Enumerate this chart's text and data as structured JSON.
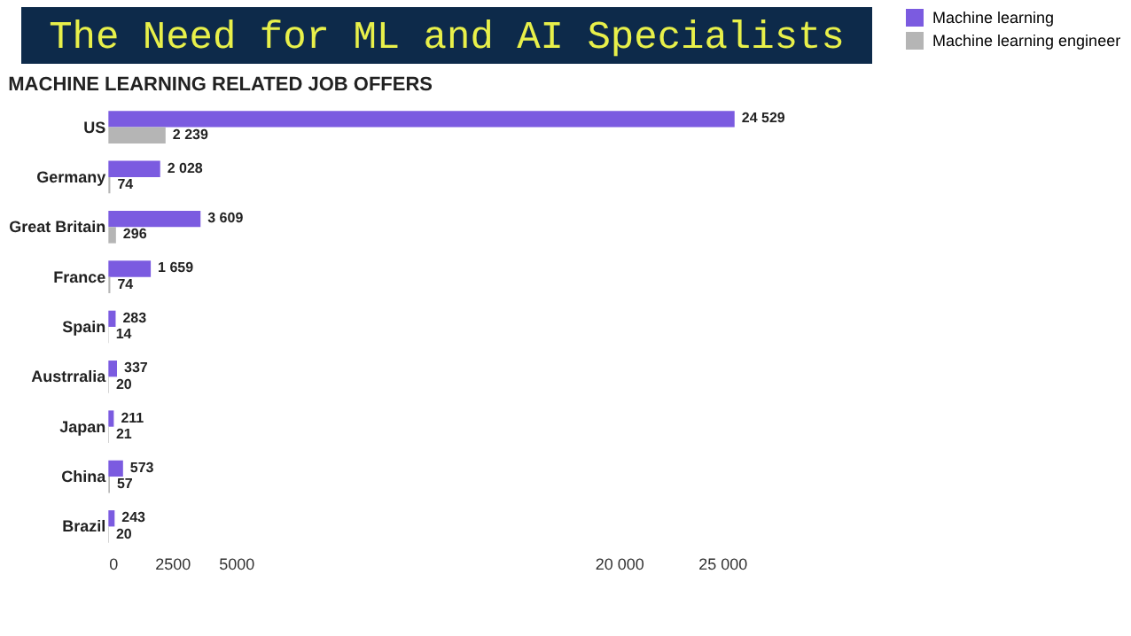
{
  "chart_data": {
    "type": "bar",
    "orientation": "horizontal",
    "title": "The Need for ML and AI Specialists",
    "subtitle": "MACHINE LEARNING RELATED JOB OFFERS",
    "categories": [
      "US",
      "Germany",
      "Great Britain",
      "France",
      "Spain",
      "Austrralia",
      "Japan",
      "China",
      "Brazil"
    ],
    "series": [
      {
        "name": "Machine learning",
        "color": "#7b5be0",
        "values": [
          24529,
          2028,
          3609,
          1659,
          283,
          337,
          211,
          573,
          243
        ],
        "value_labels": [
          "24 529",
          "2 028",
          "3 609",
          "1 659",
          "283",
          "337",
          "211",
          "573",
          "243"
        ]
      },
      {
        "name": "Machine learning engineer",
        "color": "#b5b5b5",
        "values": [
          2239,
          74,
          296,
          74,
          14,
          20,
          21,
          57,
          20
        ],
        "value_labels": [
          "2 239",
          "74",
          "296",
          "74",
          "14",
          "20",
          "21",
          "57",
          "20"
        ]
      }
    ],
    "xlim": [
      0,
      25000
    ],
    "xticks": [
      0,
      2500,
      5000,
      {
        "value": 20000,
        "label": "20 000"
      },
      {
        "value": 25000,
        "label": "25 000"
      }
    ],
    "grid": false,
    "legend": "right"
  }
}
